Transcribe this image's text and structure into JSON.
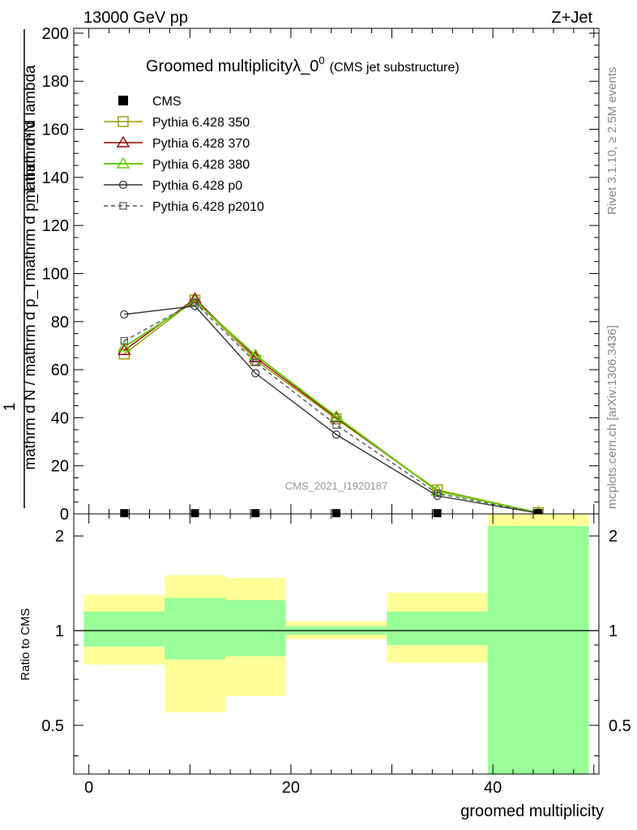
{
  "header": {
    "left": "13000 GeV pp",
    "right": "Z+Jet"
  },
  "side": {
    "rivet": "Rivet 3.1.10, ≥ 2.5M events",
    "mcplots": "mcplots.cern.ch [arXiv:1306.3436]"
  },
  "chart_data": {
    "type": "line",
    "title": "Groomed multiplicityλ_0",
    "title_sup": "0",
    "title_suffix": "(CMS jet substructure)",
    "analysis_label": "CMS_2021_I1920187",
    "xlabel": "groomed multiplicity",
    "ylabel_top": "1",
    "ylabel_bottom": "mathrm d N / mathrm d p_Tmathrm d p_Tmathrm d lambda",
    "ylabel_num": "mathrm d²N",
    "ratio_ylabel": "Ratio to CMS",
    "xlim": [
      -1.5,
      50.5
    ],
    "ylim": [
      0,
      202
    ],
    "ratio_ylim": [
      0.35,
      2.35
    ],
    "xticks": [
      0,
      20,
      40
    ],
    "yticks": [
      0,
      20,
      40,
      60,
      80,
      100,
      120,
      140,
      160,
      180,
      200
    ],
    "ratio_ticks": [
      0.5,
      1,
      2
    ],
    "data": {
      "name": "CMS",
      "x": [
        3.5,
        10.5,
        16.5,
        24.5,
        34.5,
        44.5
      ],
      "y": [
        0.3,
        0.3,
        0.3,
        0.3,
        0.3,
        0.3
      ]
    },
    "bins": [
      {
        "lo": -0.5,
        "hi": 7.5,
        "stat": [
          0.89,
          1.15
        ],
        "tot": [
          0.78,
          1.3
        ]
      },
      {
        "lo": 7.5,
        "hi": 13.5,
        "stat": [
          0.81,
          1.27
        ],
        "tot": [
          0.55,
          1.5
        ]
      },
      {
        "lo": 13.5,
        "hi": 19.5,
        "stat": [
          0.83,
          1.25
        ],
        "tot": [
          0.62,
          1.47
        ]
      },
      {
        "lo": 19.5,
        "hi": 29.5,
        "stat": [
          0.97,
          1.03
        ],
        "tot": [
          0.94,
          1.07
        ]
      },
      {
        "lo": 29.5,
        "hi": 39.5,
        "stat": [
          0.9,
          1.15
        ],
        "tot": [
          0.79,
          1.32
        ]
      },
      {
        "lo": 39.5,
        "hi": 49.5,
        "stat": [
          0.3,
          2.15
        ],
        "tot": [
          0.3,
          2.4
        ]
      }
    ],
    "series": [
      {
        "name": "Pythia 6.428 350",
        "color": "#999900",
        "marker": "square",
        "dash": false,
        "x": [
          3.5,
          10.5,
          16.5,
          24.5,
          34.5,
          44.5
        ],
        "y": [
          66.5,
          89,
          64,
          39.5,
          10,
          0.5
        ]
      },
      {
        "name": "Pythia 6.428 370",
        "color": "#990000",
        "marker": "triangle",
        "dash": false,
        "x": [
          3.5,
          10.5,
          16.5,
          24.5,
          34.5,
          44.5
        ],
        "y": [
          68,
          89.5,
          65,
          40,
          9.5,
          0.5
        ]
      },
      {
        "name": "Pythia 6.428 380",
        "color": "#66cc00",
        "marker": "triangle",
        "dash": false,
        "x": [
          3.5,
          10.5,
          16.5,
          24.5,
          34.5,
          44.5
        ],
        "y": [
          69.5,
          88.5,
          66,
          40.5,
          9.5,
          0.5
        ]
      },
      {
        "name": "Pythia 6.428 p0",
        "color": "#333333",
        "marker": "circle",
        "dash": false,
        "x": [
          3.5,
          10.5,
          16.5,
          24.5,
          34.5,
          44.5
        ],
        "y": [
          83,
          86.5,
          58.5,
          33,
          7.5,
          0.3
        ]
      },
      {
        "name": "Pythia 6.428 p2010",
        "color": "#555555",
        "marker": "smallsquare",
        "dash": true,
        "x": [
          3.5,
          10.5,
          16.5,
          24.5,
          34.5,
          44.5
        ],
        "y": [
          72,
          88,
          63,
          37,
          8.5,
          0.4
        ]
      }
    ],
    "colors": {
      "stat": "#99ff99",
      "tot": "#ffff99"
    }
  }
}
